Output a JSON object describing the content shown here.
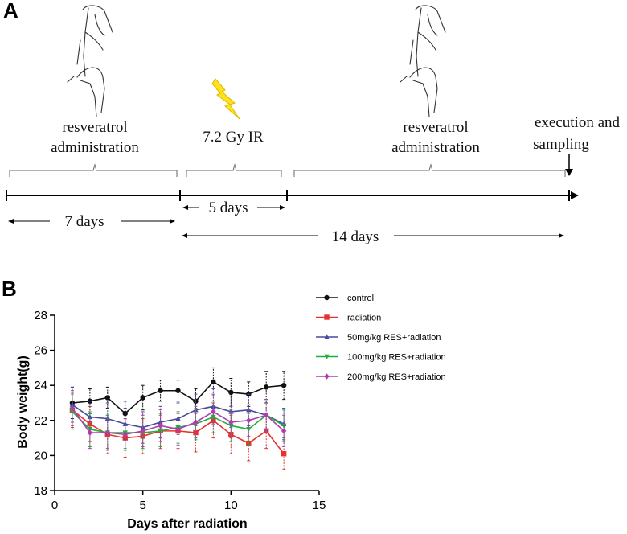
{
  "panel_a": {
    "label": "A",
    "steps": [
      {
        "lines": [
          "resveratrol",
          "administration"
        ]
      },
      {
        "lines": [
          "7.2 Gy IR"
        ]
      },
      {
        "lines": [
          "resveratrol",
          "administration"
        ]
      },
      {
        "lines": [
          "execution and",
          "sampling"
        ]
      }
    ],
    "durations": [
      "7 days",
      "5 days",
      "14 days"
    ]
  },
  "chart_data": {
    "type": "line",
    "panel_label": "B",
    "x_label": "Days after radiation",
    "y_label": "Body weight(g)",
    "x": [
      1,
      2,
      3,
      4,
      5,
      6,
      7,
      8,
      9,
      10,
      11,
      12,
      13
    ],
    "xlim": [
      0,
      15
    ],
    "xticks": [
      0,
      5,
      10,
      15
    ],
    "ylim": [
      18,
      28
    ],
    "yticks": [
      18,
      20,
      22,
      24,
      26,
      28
    ],
    "series": [
      {
        "name": "control",
        "color": "#111111",
        "marker": "circle",
        "values": [
          23.0,
          23.1,
          23.3,
          22.4,
          23.3,
          23.7,
          23.7,
          23.1,
          24.2,
          23.6,
          23.5,
          23.9,
          24.0
        ],
        "errors": [
          0.9,
          0.7,
          0.6,
          0.7,
          0.7,
          0.6,
          0.6,
          0.7,
          0.8,
          0.8,
          0.7,
          0.9,
          0.8
        ]
      },
      {
        "name": "radiation",
        "color": "#e8312f",
        "marker": "square",
        "values": [
          22.6,
          21.8,
          21.2,
          21.0,
          21.1,
          21.4,
          21.4,
          21.3,
          22.0,
          21.2,
          20.7,
          21.4,
          20.1
        ],
        "errors": [
          1.0,
          1.0,
          1.1,
          1.1,
          1.0,
          1.0,
          1.0,
          1.1,
          1.0,
          1.1,
          1.0,
          1.0,
          0.9
        ]
      },
      {
        "name": "50mg/kg RES+radiation",
        "color": "#4a4a9a",
        "marker": "triangle-up",
        "values": [
          22.9,
          22.2,
          22.1,
          21.8,
          21.6,
          21.9,
          22.1,
          22.6,
          22.8,
          22.5,
          22.6,
          22.3,
          21.8
        ],
        "errors": [
          1.0,
          0.9,
          0.9,
          0.9,
          0.9,
          0.9,
          0.9,
          0.9,
          1.0,
          0.9,
          0.9,
          0.9,
          0.9
        ]
      },
      {
        "name": "100mg/kg RES+radiation",
        "color": "#1fae3c",
        "marker": "triangle-down",
        "values": [
          22.5,
          21.5,
          21.3,
          21.3,
          21.3,
          21.4,
          21.6,
          21.8,
          22.2,
          21.7,
          21.5,
          22.3,
          21.7
        ],
        "errors": [
          1.0,
          1.0,
          1.0,
          0.9,
          0.9,
          0.9,
          0.9,
          0.9,
          0.9,
          0.9,
          0.9,
          0.9,
          0.9
        ]
      },
      {
        "name": "200mg/kg RES+radiation",
        "color": "#b03cb0",
        "marker": "diamond",
        "values": [
          22.7,
          21.3,
          21.3,
          21.2,
          21.4,
          21.7,
          21.5,
          21.9,
          22.5,
          21.9,
          22.0,
          22.3,
          21.4
        ],
        "errors": [
          1.0,
          0.9,
          0.9,
          0.9,
          0.9,
          0.9,
          0.9,
          0.9,
          1.0,
          0.9,
          0.9,
          0.9,
          0.9
        ]
      }
    ]
  }
}
